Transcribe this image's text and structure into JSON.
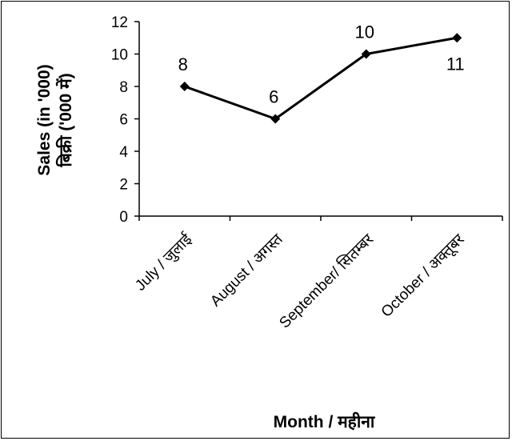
{
  "chart_data": {
    "type": "line",
    "categories": [
      "July / जुलाई",
      "August / अगस्त",
      "September/ सितम्बर",
      "October / अक्तूबर"
    ],
    "series": [
      {
        "values": [
          8,
          6,
          10,
          11
        ],
        "data_labels": [
          "8",
          "6",
          "10",
          "11"
        ],
        "color": "#000000"
      }
    ],
    "title": "",
    "xlabel": "Month / महीना",
    "ylabel_lines": [
      "Sales (in '000)",
      "बिक्री ('000 में)"
    ],
    "ylim": [
      0,
      12
    ],
    "yticks": [
      0,
      2,
      4,
      6,
      8,
      10,
      12
    ],
    "grid": false,
    "legend": "none",
    "marker": "diamond"
  }
}
